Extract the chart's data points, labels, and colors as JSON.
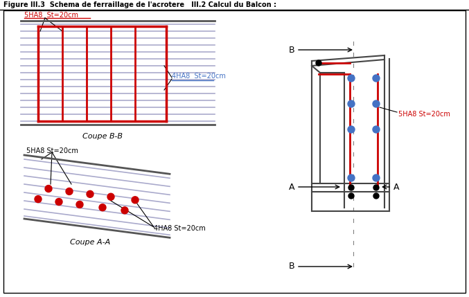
{
  "title": "Figure III.3  Schema de ferraillage de l'acrotere   III.2 Calcul du Balcon :",
  "bg_color": "#ffffff",
  "red": "#cc0000",
  "blue": "#4472c4",
  "black": "#000000",
  "dark": "#333333",
  "gray_blue": "#aaaacc",
  "label_BB_top": "5HA8  St=20cm",
  "label_BB_right": "4HA8  St=20cm",
  "label_AA_top": "5HA8 St=20cm",
  "label_AA_right": "4HA8 St=20cm",
  "label_side_right": "5HA8 St=20cm",
  "caption_BB": "Coupe B-B",
  "caption_AA": "Coupe A-A"
}
